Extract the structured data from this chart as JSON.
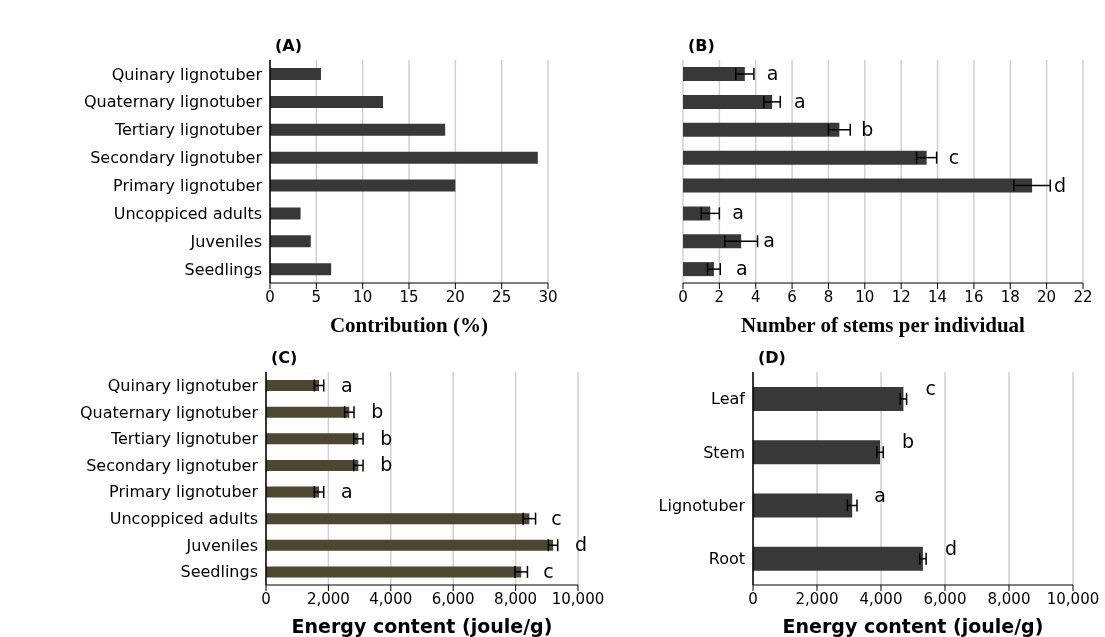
{
  "chart_data": [
    {
      "type": "bar",
      "orientation": "horizontal",
      "title": "(A)",
      "xlabel": "Contribution (%)",
      "categories": [
        "Quinary lignotuber",
        "Quaternary lignotuber",
        "Tertiary lignotuber",
        "Secondary lignotuber",
        "Primary lignotuber",
        "Uncoppiced adults",
        "Juveniles",
        "Seedlings"
      ],
      "values": [
        5.5,
        12.2,
        18.9,
        28.9,
        20,
        3.3,
        4.4,
        6.6
      ],
      "color": "#383838",
      "xlim": [
        0,
        30
      ],
      "xticks": [
        0,
        5,
        10,
        15,
        20,
        25,
        30
      ],
      "grid": "x"
    },
    {
      "type": "bar",
      "orientation": "horizontal",
      "title": "(B)",
      "xlabel": "Number of stems per individual",
      "categories": [
        null,
        null,
        null,
        null,
        null,
        null,
        null,
        null
      ],
      "values": [
        3.4,
        4.9,
        8.6,
        13.4,
        19.2,
        1.5,
        3.2,
        1.7
      ],
      "errors": [
        0.5,
        0.45,
        0.6,
        0.55,
        1.0,
        0.5,
        0.9,
        0.35
      ],
      "value_labels": [
        "a",
        "a",
        "b",
        "c",
        "d",
        "a",
        "a",
        "a"
      ],
      "color": "#383838",
      "xlim": [
        0,
        22
      ],
      "xticks": [
        0,
        2,
        4,
        6,
        8,
        10,
        12,
        14,
        16,
        18,
        20,
        22
      ],
      "grid": "x",
      "tick_labels": "x"
    },
    {
      "type": "bar",
      "orientation": "horizontal",
      "title": "(C)",
      "xlabel": "Energy content (joule/g)",
      "categories": [
        "Quinary lignotuber",
        "Quaternary lignotuber",
        "Tertiary lignotuber",
        "Secondary lignotuber",
        "Primary lignotuber",
        "Uncoppiced adults",
        "Juveniles",
        "Seedlings"
      ],
      "values": [
        1700,
        2670,
        2960,
        2960,
        1700,
        8440,
        9200,
        8180
      ],
      "errors": [
        150,
        150,
        150,
        150,
        150,
        200,
        150,
        200
      ],
      "value_labels": [
        "a",
        "b",
        "b",
        "b",
        "a",
        "c",
        "d",
        "c"
      ],
      "color": "#4d4631",
      "xlim": [
        0,
        10000
      ],
      "xticks": [
        0,
        {
          "value": 2000,
          "label": "2,000"
        },
        {
          "value": 4000,
          "label": "4,000"
        },
        {
          "value": 6000,
          "label": "6,000"
        },
        {
          "value": 8000,
          "label": "8,000"
        },
        {
          "value": 10000,
          "label": "10,000"
        }
      ],
      "grid": "x"
    },
    {
      "type": "bar",
      "orientation": "horizontal",
      "title": "(D)",
      "xlabel": "Energy content (joule/g)",
      "categories": [
        "Leaf",
        "Stem",
        "Lignotuber",
        "Root"
      ],
      "values": [
        4700,
        3970,
        3100,
        5310
      ],
      "errors": [
        100,
        100,
        150,
        100
      ],
      "value_labels": [
        "c",
        "b",
        "a",
        "d"
      ],
      "color": "#383838",
      "xlim": [
        0,
        10000
      ],
      "xticks": [
        0,
        {
          "value": 2000,
          "label": "2,000"
        },
        {
          "value": 4000,
          "label": "4,000"
        },
        {
          "value": 6000,
          "label": "6,000"
        },
        {
          "value": 8000,
          "label": "8,000"
        },
        {
          "value": 10000,
          "label": "10,000"
        }
      ],
      "grid": "x"
    }
  ]
}
